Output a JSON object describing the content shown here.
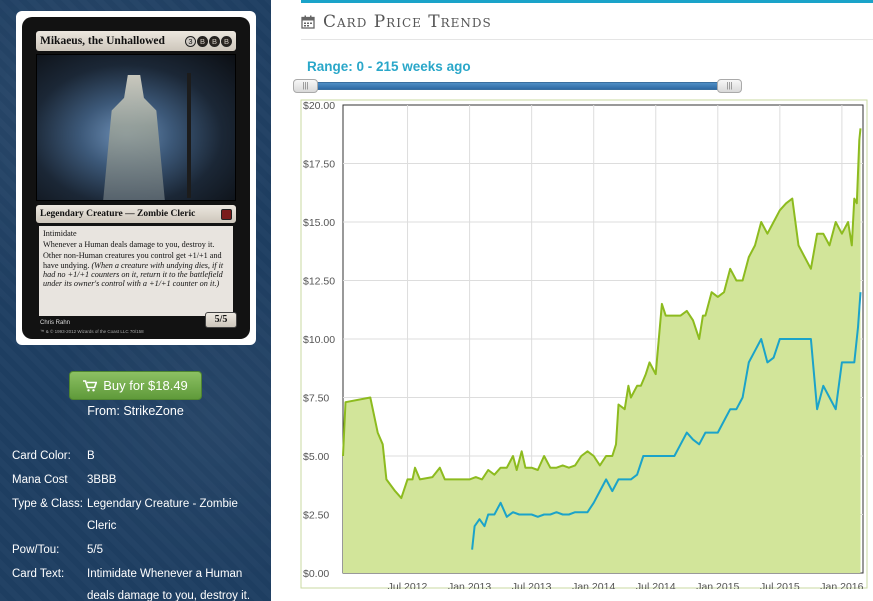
{
  "card": {
    "name": "Mikaeus, the Unhallowed",
    "mana_symbols": [
      "3",
      "B",
      "B",
      "B"
    ],
    "type_line": "Legendary Creature — Zombie Cleric",
    "ability_1": "Intimidate",
    "ability_2": "Whenever a Human deals damage to you, destroy it.",
    "ability_3": "Other non-Human creatures you control get +1/+1 and have undying.",
    "reminder_text": "(When a creature with undying dies, if it had no +1/+1 counters on it, return it to the battlefield under its owner's control with a +1/+1 counter on it.)",
    "power_toughness": "5/5",
    "artist": "Chris Rahn",
    "copyright": "™ & © 1993-2012 Wizards of the Coast LLC 70/158"
  },
  "purchase": {
    "buy_label": "Buy for $18.49",
    "from_label": "From: StrikeZone"
  },
  "info": [
    {
      "key": "Card Color:",
      "value": "B"
    },
    {
      "key": "Mana Cost",
      "value": "3BBB"
    },
    {
      "key": "Type & Class:",
      "value": "Legendary Creature - Zombie Cleric"
    },
    {
      "key": "Pow/Tou:",
      "value": "5/5"
    },
    {
      "key": "Card Text:",
      "value": "Intimidate Whenever a Human deals damage to you, destroy it."
    }
  ],
  "trends": {
    "title": "Card Price Trends",
    "range_label": "Range: 0 - 215 weeks ago",
    "slider_min": 0,
    "slider_max": 215
  },
  "colors": {
    "accent": "#1aa3c9",
    "green_line": "#8dbb1f",
    "green_fill": "#d2e59a",
    "blue_line": "#1ba3c9",
    "buy_button": "#6fa846",
    "sidebar_bg": "#1f3f63"
  },
  "chart_data": {
    "type": "line",
    "title": "",
    "xlabel": "",
    "ylabel": "",
    "ylim": [
      0,
      20
    ],
    "y_ticks": [
      "$0.00",
      "$2.50",
      "$5.00",
      "$7.50",
      "$10.00",
      "$12.50",
      "$15.00",
      "$17.50",
      "$20.00"
    ],
    "x_ticks": [
      {
        "label": "Jul 2012",
        "t": 2012.5
      },
      {
        "label": "Jan 2013",
        "t": 2013.0
      },
      {
        "label": "Jul 2013",
        "t": 2013.5
      },
      {
        "label": "Jan 2014",
        "t": 2014.0
      },
      {
        "label": "Jul 2014",
        "t": 2014.5
      },
      {
        "label": "Jan 2015",
        "t": 2015.0
      },
      {
        "label": "Jul 2015",
        "t": 2015.5
      },
      {
        "label": "Jan 2016",
        "t": 2016.0
      }
    ],
    "xlim": [
      2011.98,
      2016.17
    ],
    "grid": true,
    "legend": "none",
    "series": [
      {
        "style": "area",
        "x": [
          2011.98,
          2012.0,
          2012.2,
          2012.26,
          2012.3,
          2012.33,
          2012.4,
          2012.45,
          2012.5,
          2012.54,
          2012.56,
          2012.6,
          2012.7,
          2012.76,
          2012.8,
          2012.9,
          2013.0,
          2013.05,
          2013.1,
          2013.15,
          2013.2,
          2013.25,
          2013.3,
          2013.35,
          2013.38,
          2013.42,
          2013.45,
          2013.5,
          2013.55,
          2013.6,
          2013.65,
          2013.7,
          2013.75,
          2013.8,
          2013.85,
          2013.9,
          2013.95,
          2014.0,
          2014.05,
          2014.1,
          2014.15,
          2014.18,
          2014.2,
          2014.25,
          2014.28,
          2014.3,
          2014.35,
          2014.38,
          2014.42,
          2014.45,
          2014.5,
          2014.55,
          2014.58,
          2014.6,
          2014.65,
          2014.7,
          2014.75,
          2014.8,
          2014.85,
          2014.88,
          2014.9,
          2014.95,
          2015.0,
          2015.05,
          2015.1,
          2015.15,
          2015.2,
          2015.25,
          2015.3,
          2015.35,
          2015.4,
          2015.45,
          2015.5,
          2015.55,
          2015.6,
          2015.65,
          2015.7,
          2015.75,
          2015.8,
          2015.85,
          2015.9,
          2015.95,
          2016.0,
          2016.05,
          2016.08,
          2016.1,
          2016.12,
          2016.14,
          2016.15
        ],
        "y": [
          5.0,
          7.3,
          7.5,
          6.0,
          5.5,
          4.0,
          3.5,
          3.2,
          4.0,
          4.0,
          4.5,
          4.0,
          4.1,
          4.5,
          4.0,
          4.0,
          4.0,
          4.1,
          4.0,
          4.4,
          4.2,
          4.5,
          4.5,
          5.0,
          4.4,
          5.2,
          4.5,
          4.5,
          4.4,
          5.0,
          4.5,
          4.5,
          4.6,
          4.5,
          4.6,
          5.0,
          5.2,
          5.0,
          4.6,
          5.0,
          5.0,
          5.5,
          7.2,
          7.0,
          8.0,
          7.5,
          8.0,
          8.0,
          8.5,
          9.0,
          8.5,
          11.5,
          11.0,
          11.0,
          11.0,
          11.0,
          11.2,
          10.8,
          10.0,
          11.0,
          11.0,
          12.0,
          11.8,
          12.0,
          13.0,
          12.5,
          12.5,
          13.5,
          14.0,
          15.0,
          14.5,
          15.0,
          15.5,
          15.8,
          16.0,
          14.0,
          13.5,
          13.0,
          14.5,
          14.5,
          14.0,
          15.0,
          14.5,
          15.0,
          14.0,
          16.0,
          15.8,
          18.5,
          19.0
        ]
      },
      {
        "style": "line",
        "x": [
          2013.02,
          2013.04,
          2013.08,
          2013.12,
          2013.15,
          2013.2,
          2013.25,
          2013.3,
          2013.35,
          2013.4,
          2013.45,
          2013.5,
          2013.55,
          2013.6,
          2013.65,
          2013.7,
          2013.75,
          2013.8,
          2013.85,
          2013.9,
          2013.95,
          2014.0,
          2014.05,
          2014.1,
          2014.15,
          2014.2,
          2014.25,
          2014.3,
          2014.35,
          2014.4,
          2014.45,
          2014.5,
          2014.55,
          2014.6,
          2014.65,
          2014.7,
          2014.75,
          2014.8,
          2014.85,
          2014.9,
          2014.95,
          2015.0,
          2015.05,
          2015.1,
          2015.15,
          2015.2,
          2015.25,
          2015.3,
          2015.35,
          2015.4,
          2015.45,
          2015.5,
          2015.55,
          2015.6,
          2015.65,
          2015.7,
          2015.75,
          2015.8,
          2015.85,
          2015.9,
          2015.95,
          2016.0,
          2016.05,
          2016.1,
          2016.13,
          2016.15
        ],
        "y": [
          1.0,
          2.0,
          2.3,
          2.0,
          2.5,
          2.5,
          3.0,
          2.4,
          2.6,
          2.5,
          2.5,
          2.5,
          2.4,
          2.5,
          2.5,
          2.6,
          2.5,
          2.5,
          2.6,
          2.6,
          2.6,
          3.0,
          3.5,
          4.0,
          3.5,
          4.0,
          4.0,
          4.0,
          4.2,
          5.0,
          5.0,
          5.0,
          5.0,
          5.0,
          5.0,
          5.5,
          6.0,
          5.7,
          5.5,
          6.0,
          6.0,
          6.0,
          6.5,
          7.0,
          7.0,
          7.5,
          9.0,
          9.5,
          10.0,
          9.0,
          9.2,
          10.0,
          10.0,
          10.0,
          10.0,
          10.0,
          10.0,
          7.0,
          8.0,
          7.5,
          7.0,
          9.0,
          9.0,
          9.0,
          10.5,
          12.0
        ]
      }
    ]
  }
}
